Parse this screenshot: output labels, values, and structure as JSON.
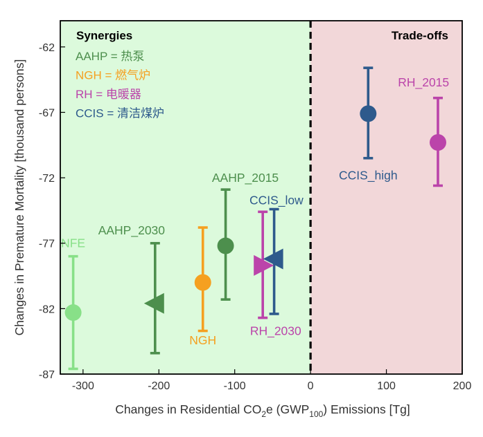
{
  "chart_data": {
    "type": "scatter",
    "xlabel": {
      "prefix": "Changes in Residential CO",
      "sub1": "2",
      "mid": "e (GWP",
      "sub2": "100",
      "suffix": ") Emissions [Tg]"
    },
    "ylabel": "Changes in Premature Mortality [thousand persons]",
    "xlim": [
      -330,
      200
    ],
    "ylim": [
      -87,
      -60
    ],
    "xticks": [
      -300,
      -200,
      -100,
      0,
      100,
      200
    ],
    "yticks": [
      -62,
      -67,
      -72,
      -77,
      -82,
      -87
    ],
    "divider_x": 0,
    "regions": [
      {
        "name": "Synergies",
        "from": -330,
        "to": 0,
        "color": "#dcfadc"
      },
      {
        "name": "Trade-offs",
        "from": 0,
        "to": 200,
        "color": "#f2d7d9"
      }
    ],
    "legend": [
      {
        "text": "AAHP = 热泵",
        "color": "#4d8f4d"
      },
      {
        "text": "NGH = 燃气炉",
        "color": "#f5a020"
      },
      {
        "text": "RH = 电暖器",
        "color": "#bb44aa"
      },
      {
        "text": "CCIS = 清洁煤炉",
        "color": "#2e5a8c"
      }
    ],
    "points": [
      {
        "label": "NFE",
        "x": -313,
        "y": -82.3,
        "ylow": -86.6,
        "yhigh": -78.0,
        "marker": "circle",
        "color": "#88e088",
        "label_pos": [
          -313,
          -77.0
        ]
      },
      {
        "label": "AAHP_2030",
        "x": -205,
        "y": -81.6,
        "ylow": -85.4,
        "yhigh": -77.0,
        "marker": "triangle-left",
        "color": "#4d8f4d",
        "label_pos": [
          -236,
          -76.0
        ]
      },
      {
        "label": "NGH",
        "x": -142,
        "y": -80.0,
        "ylow": -83.7,
        "yhigh": -75.8,
        "marker": "circle",
        "color": "#f5a020",
        "label_pos": [
          -142,
          -84.4
        ]
      },
      {
        "label": "AAHP_2015",
        "x": -112,
        "y": -77.2,
        "ylow": -81.3,
        "yhigh": -72.9,
        "marker": "circle",
        "color": "#4d8f4d",
        "label_pos": [
          -86,
          -72.0
        ]
      },
      {
        "label": "RH_2030",
        "x": -63,
        "y": -78.7,
        "ylow": -82.7,
        "yhigh": -74.6,
        "marker": "triangle-right",
        "color": "#bb44aa",
        "label_pos": [
          -46,
          -83.7
        ]
      },
      {
        "label": "CCIS_low",
        "x": -48,
        "y": -78.2,
        "ylow": -82.4,
        "yhigh": -74.4,
        "marker": "triangle-left",
        "color": "#2e5a8c",
        "label_pos": [
          -45,
          -73.7
        ]
      },
      {
        "label": "CCIS_high",
        "x": 76,
        "y": -67.1,
        "ylow": -70.5,
        "yhigh": -63.6,
        "marker": "circle",
        "color": "#2e5a8c",
        "label_pos": [
          76,
          -71.8
        ]
      },
      {
        "label": "RH_2015",
        "x": 168,
        "y": -69.3,
        "ylow": -72.6,
        "yhigh": -65.9,
        "marker": "circle",
        "color": "#bb44aa",
        "label_pos": [
          149,
          -64.7
        ]
      }
    ]
  }
}
